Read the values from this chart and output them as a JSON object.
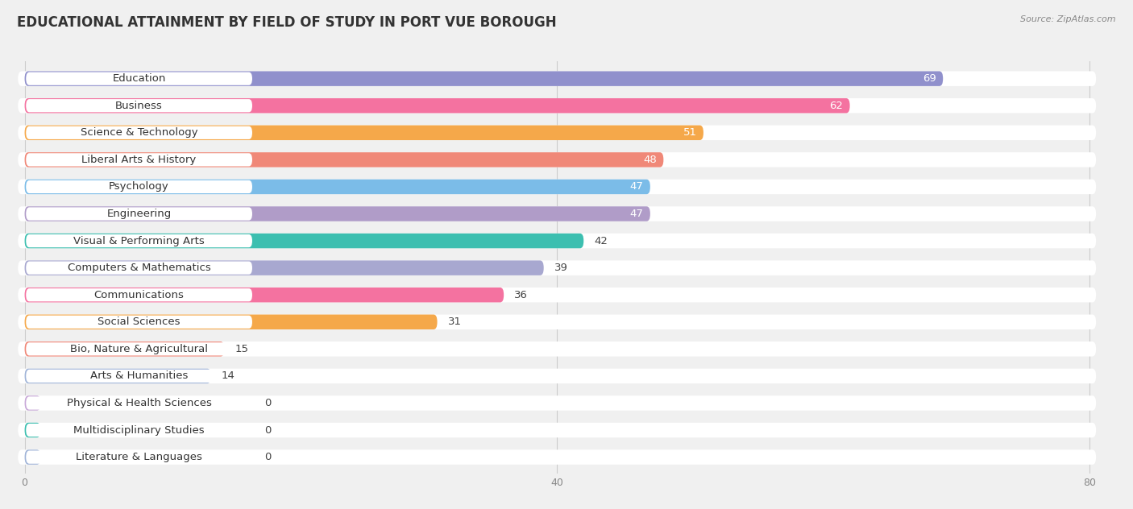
{
  "title": "EDUCATIONAL ATTAINMENT BY FIELD OF STUDY IN PORT VUE BOROUGH",
  "source": "Source: ZipAtlas.com",
  "categories": [
    "Education",
    "Business",
    "Science & Technology",
    "Liberal Arts & History",
    "Psychology",
    "Engineering",
    "Visual & Performing Arts",
    "Computers & Mathematics",
    "Communications",
    "Social Sciences",
    "Bio, Nature & Agricultural",
    "Arts & Humanities",
    "Physical & Health Sciences",
    "Multidisciplinary Studies",
    "Literature & Languages"
  ],
  "values": [
    69,
    62,
    51,
    48,
    47,
    47,
    42,
    39,
    36,
    31,
    15,
    14,
    0,
    0,
    0
  ],
  "bar_colors": [
    "#9090CC",
    "#F472A0",
    "#F5A84A",
    "#F08878",
    "#7BBCE8",
    "#B09CC8",
    "#3CBFB0",
    "#A8A8D0",
    "#F472A0",
    "#F5A84A",
    "#F08878",
    "#A0B4D8",
    "#C8A8D8",
    "#3CBFB0",
    "#A0B4D8"
  ],
  "xlim_max": 80,
  "xticks": [
    0,
    40,
    80
  ],
  "background_color": "#f0f0f0",
  "bar_row_bg": "#ffffff",
  "label_fontsize": 9.5,
  "value_fontsize": 9.5,
  "title_fontsize": 12
}
